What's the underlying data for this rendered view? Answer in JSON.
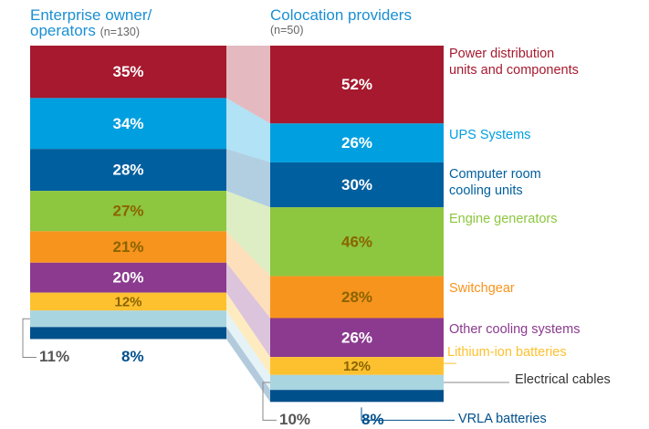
{
  "chart_data": {
    "type": "stacked-column-flow",
    "categories": [
      "Enterprise owner/\noperators",
      "Colocation providers"
    ],
    "sample_sizes": [
      "(n=130)",
      "(n=50)"
    ],
    "series": [
      {
        "name": "Power distribution\nunits and components",
        "color": "#a6192e",
        "values": [
          35,
          52
        ],
        "value_labels": [
          "35%",
          "52%"
        ]
      },
      {
        "name": "UPS Systems",
        "color": "#009fdf",
        "values": [
          34,
          26
        ],
        "value_labels": [
          "34%",
          "26%"
        ]
      },
      {
        "name": "Computer room\ncooling units",
        "color": "#005f9e",
        "values": [
          28,
          30
        ],
        "value_labels": [
          "28%",
          "30%"
        ]
      },
      {
        "name": "Engine generators",
        "color": "#8dc63f",
        "values": [
          27,
          46
        ],
        "value_labels": [
          "27%",
          "46%"
        ]
      },
      {
        "name": "Switchgear",
        "color": "#f7941d",
        "values": [
          21,
          28
        ],
        "value_labels": [
          "21%",
          "28%"
        ]
      },
      {
        "name": "Other cooling systems",
        "color": "#8b3a8f",
        "values": [
          20,
          26
        ],
        "value_labels": [
          "20%",
          "26%"
        ]
      },
      {
        "name": "Lithium-ion batteries",
        "color": "#fdc130",
        "values": [
          12,
          12
        ],
        "value_labels": [
          "12%",
          "12%"
        ]
      },
      {
        "name": "Electrical cables",
        "color": "#a9d5e1",
        "values": [
          11,
          10
        ],
        "value_labels": [
          "11%",
          "10%"
        ]
      },
      {
        "name": "VRLA batteries",
        "color": "#00508c",
        "values": [
          8,
          8
        ],
        "value_labels": [
          "8%",
          "8%"
        ]
      }
    ]
  }
}
